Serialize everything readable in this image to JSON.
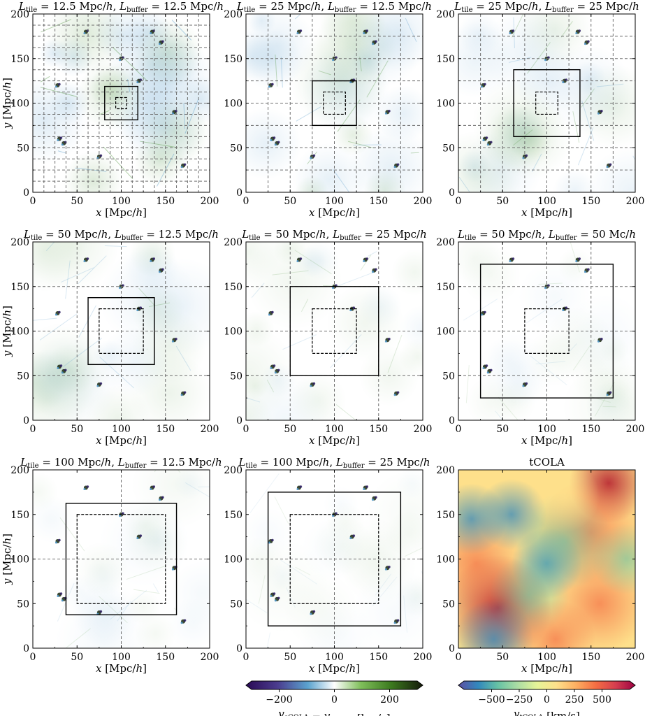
{
  "chart_data": {
    "type": "heatmap",
    "figure": "3x3 grid of velocity-difference maps with a tCOLA reference panel",
    "axes": {
      "xlabel": "x [Mpc/h]",
      "ylabel": "y [Mpc/h]",
      "xlim": [
        0,
        200
      ],
      "ylim": [
        0,
        200
      ],
      "xticks": [
        "0",
        "50",
        "100",
        "150",
        "200"
      ],
      "yticks": [
        "0",
        "50",
        "100",
        "150",
        "200"
      ]
    },
    "panels": [
      {
        "id": "p1",
        "title": "L_tile = 12.5 Mpc/h, L_buffer = 12.5 Mpc/h",
        "tile": 12.5,
        "buffer": 12.5,
        "map": "diff",
        "show_ylabel": true,
        "show_xlabel": true
      },
      {
        "id": "p2",
        "title": "L_tile = 25 Mpc/h, L_buffer = 12.5 Mpc/h",
        "tile": 25,
        "buffer": 12.5,
        "map": "diff",
        "show_ylabel": false,
        "show_xlabel": true
      },
      {
        "id": "p3",
        "title": "L_tile = 25 Mpc/h, L_buffer = 25 Mpc/h",
        "tile": 25,
        "buffer": 25,
        "map": "diff",
        "show_ylabel": false,
        "show_xlabel": true
      },
      {
        "id": "p4",
        "title": "L_tile = 50 Mpc/h, L_buffer = 12.5 Mpc/h",
        "tile": 50,
        "buffer": 12.5,
        "map": "diff",
        "show_ylabel": true,
        "show_xlabel": true
      },
      {
        "id": "p5",
        "title": "L_tile = 50 Mpc/h, L_buffer = 25 Mpc/h",
        "tile": 50,
        "buffer": 25,
        "map": "diff",
        "show_ylabel": false,
        "show_xlabel": true
      },
      {
        "id": "p6",
        "title": "L_tile = 50 Mpc/h, L_buffer = 50 Mc/h",
        "tile": 50,
        "buffer": 50,
        "map": "diff",
        "show_ylabel": false,
        "show_xlabel": true
      },
      {
        "id": "p7",
        "title": "L_tile = 100 Mpc/h, L_buffer = 12.5 Mpc/h",
        "tile": 100,
        "buffer": 12.5,
        "map": "diff",
        "show_ylabel": true,
        "show_xlabel": true
      },
      {
        "id": "p8",
        "title": "L_tile = 100 Mpc/h, L_buffer = 25 Mpc/h",
        "tile": 100,
        "buffer": 25,
        "map": "diff",
        "show_ylabel": false,
        "show_xlabel": true
      },
      {
        "id": "p9",
        "title": "tCOLA",
        "tile": null,
        "buffer": null,
        "map": "vel",
        "show_ylabel": false,
        "show_xlabel": true
      }
    ],
    "colorbars": [
      {
        "id": "cb-diff",
        "label": "v_sCOLA − v_tCOLA [km/s]",
        "ticks": [
          -200,
          0,
          200
        ],
        "tick_labels": [
          "−200",
          "0",
          "200"
        ],
        "range": [
          -300,
          300
        ],
        "colormap": "diverging purple-blue-white-green-black"
      },
      {
        "id": "cb-vel",
        "label": "v_tCOLA [km/s]",
        "ticks": [
          -500,
          -250,
          0,
          250,
          500
        ],
        "tick_labels": [
          "−500",
          "−250",
          "0",
          "250",
          "500"
        ],
        "range": [
          -750,
          750
        ],
        "colormap": "Spectral_r"
      }
    ],
    "halos": [
      [
        28,
        120
      ],
      [
        35,
        55
      ],
      [
        30,
        60
      ],
      [
        135,
        180
      ],
      [
        60,
        180
      ],
      [
        145,
        168
      ],
      [
        100,
        150
      ],
      [
        160,
        90
      ],
      [
        170,
        30
      ],
      [
        75,
        40
      ],
      [
        120,
        125
      ]
    ],
    "grid": true,
    "legend": "none"
  },
  "colors": {
    "grid_line": "#6e6e6e",
    "box_solid": "#000000",
    "diff_positive": "#3f8a2a",
    "diff_negative": "#4a93c6",
    "vel_colormap": [
      "#5e4fa2",
      "#3288bd",
      "#66c2a5",
      "#abdda4",
      "#e6f598",
      "#fee08b",
      "#fdae61",
      "#f46d43",
      "#d53e4f",
      "#9e0142"
    ]
  }
}
